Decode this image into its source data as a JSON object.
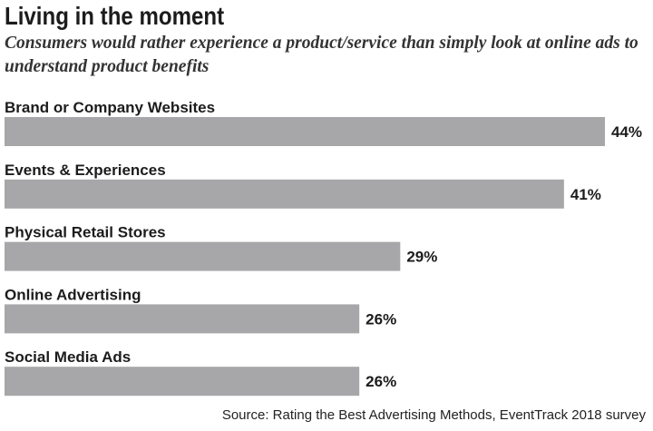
{
  "title": "Living in the moment",
  "subtitle": "Consumers would rather experience a product/service than simply look at online ads to understand product benefits",
  "source": "Source: Rating the Best Advertising Methods, EventTrack 2018 survey",
  "colors": {
    "bar": "#a7a7a9",
    "text": "#1c1c1c"
  },
  "chart_data": {
    "type": "bar",
    "orientation": "horizontal",
    "categories": [
      "Brand or Company Websites",
      "Events & Experiences",
      "Physical Retail Stores",
      "Online Advertising",
      "Social Media Ads"
    ],
    "values": [
      44,
      41,
      29,
      26,
      26
    ],
    "data_labels": [
      "44%",
      "41%",
      "29%",
      "26%",
      "26%"
    ],
    "unit": "%",
    "xlim": [
      0,
      44
    ],
    "grid": false,
    "legend": "none"
  }
}
